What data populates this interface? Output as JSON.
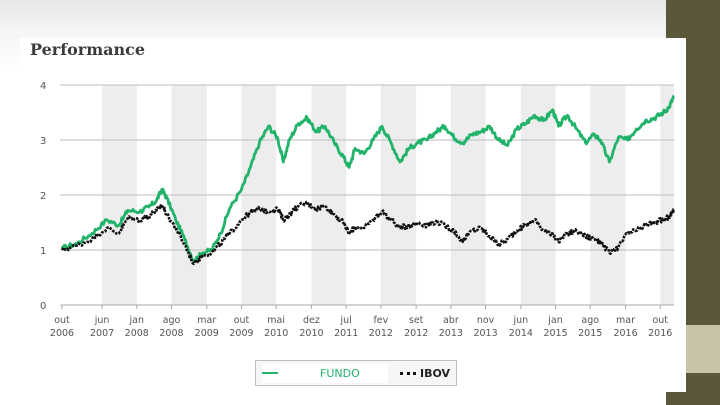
{
  "title": "Performance",
  "colors": {
    "fundo": "#22b36a",
    "ibov": "#111111",
    "band": "#ededed",
    "grid": "#bdbdbd",
    "deco_dark": "#5b573a",
    "deco_light": "#c7c4a8"
  },
  "legend": {
    "fundo_label": "FUNDO",
    "ibov_label": "IBOV"
  },
  "chart_data": {
    "type": "line",
    "title": "Performance",
    "ylim": [
      0,
      4
    ],
    "yticks": [
      "0",
      "1",
      "2",
      "3",
      "4"
    ],
    "xlim": [
      2006.75,
      2016.98
    ],
    "xticks": [
      {
        "x": 2006.75,
        "m": "out",
        "y": "2006"
      },
      {
        "x": 2007.42,
        "m": "jun",
        "y": "2007"
      },
      {
        "x": 2008.0,
        "m": "jan",
        "y": "2008"
      },
      {
        "x": 2008.58,
        "m": "ago",
        "y": "2008"
      },
      {
        "x": 2009.17,
        "m": "mar",
        "y": "2009"
      },
      {
        "x": 2009.75,
        "m": "out",
        "y": "2009"
      },
      {
        "x": 2010.33,
        "m": "mai",
        "y": "2010"
      },
      {
        "x": 2010.92,
        "m": "dez",
        "y": "2010"
      },
      {
        "x": 2011.5,
        "m": "jul",
        "y": "2011"
      },
      {
        "x": 2012.08,
        "m": "fev",
        "y": "2012"
      },
      {
        "x": 2012.67,
        "m": "set",
        "y": "2012"
      },
      {
        "x": 2013.25,
        "m": "abr",
        "y": "2013"
      },
      {
        "x": 2013.83,
        "m": "nov",
        "y": "2013"
      },
      {
        "x": 2014.42,
        "m": "jun",
        "y": "2014"
      },
      {
        "x": 2015.0,
        "m": "jan",
        "y": "2015"
      },
      {
        "x": 2015.58,
        "m": "ago",
        "y": "2015"
      },
      {
        "x": 2016.17,
        "m": "mar",
        "y": "2016"
      },
      {
        "x": 2016.75,
        "m": "out",
        "y": "2016"
      }
    ],
    "grid": true,
    "legend_position": "bottom",
    "series": [
      {
        "name": "FUNDO",
        "style": "solid",
        "points": [
          [
            2006.75,
            1.03
          ],
          [
            2007.0,
            1.12
          ],
          [
            2007.25,
            1.3
          ],
          [
            2007.5,
            1.55
          ],
          [
            2007.7,
            1.45
          ],
          [
            2007.85,
            1.72
          ],
          [
            2008.05,
            1.7
          ],
          [
            2008.2,
            1.78
          ],
          [
            2008.33,
            1.9
          ],
          [
            2008.42,
            2.1
          ],
          [
            2008.5,
            1.95
          ],
          [
            2008.65,
            1.55
          ],
          [
            2008.8,
            1.2
          ],
          [
            2008.95,
            0.8
          ],
          [
            2009.1,
            0.95
          ],
          [
            2009.25,
            1.0
          ],
          [
            2009.4,
            1.3
          ],
          [
            2009.55,
            1.75
          ],
          [
            2009.75,
            2.1
          ],
          [
            2009.9,
            2.5
          ],
          [
            2010.05,
            2.95
          ],
          [
            2010.2,
            3.25
          ],
          [
            2010.35,
            3.05
          ],
          [
            2010.45,
            2.6
          ],
          [
            2010.55,
            3.0
          ],
          [
            2010.7,
            3.3
          ],
          [
            2010.85,
            3.4
          ],
          [
            2011.0,
            3.15
          ],
          [
            2011.15,
            3.25
          ],
          [
            2011.3,
            2.95
          ],
          [
            2011.45,
            2.7
          ],
          [
            2011.55,
            2.5
          ],
          [
            2011.65,
            2.85
          ],
          [
            2011.8,
            2.75
          ],
          [
            2011.95,
            3.0
          ],
          [
            2012.1,
            3.25
          ],
          [
            2012.25,
            2.95
          ],
          [
            2012.4,
            2.6
          ],
          [
            2012.55,
            2.85
          ],
          [
            2012.7,
            2.95
          ],
          [
            2012.85,
            3.0
          ],
          [
            2013.0,
            3.15
          ],
          [
            2013.15,
            3.25
          ],
          [
            2013.3,
            3.05
          ],
          [
            2013.45,
            2.95
          ],
          [
            2013.6,
            3.1
          ],
          [
            2013.75,
            3.15
          ],
          [
            2013.9,
            3.25
          ],
          [
            2014.05,
            3.0
          ],
          [
            2014.2,
            2.9
          ],
          [
            2014.35,
            3.2
          ],
          [
            2014.5,
            3.3
          ],
          [
            2014.65,
            3.45
          ],
          [
            2014.8,
            3.35
          ],
          [
            2014.95,
            3.55
          ],
          [
            2015.05,
            3.25
          ],
          [
            2015.2,
            3.45
          ],
          [
            2015.35,
            3.2
          ],
          [
            2015.5,
            2.95
          ],
          [
            2015.65,
            3.1
          ],
          [
            2015.75,
            3.0
          ],
          [
            2015.9,
            2.6
          ],
          [
            2016.05,
            3.05
          ],
          [
            2016.2,
            3.0
          ],
          [
            2016.35,
            3.2
          ],
          [
            2016.5,
            3.35
          ],
          [
            2016.65,
            3.4
          ],
          [
            2016.8,
            3.5
          ],
          [
            2016.9,
            3.6
          ],
          [
            2016.98,
            3.8
          ]
        ]
      },
      {
        "name": "IBOV",
        "style": "dotted",
        "points": [
          [
            2006.75,
            1.0
          ],
          [
            2007.0,
            1.08
          ],
          [
            2007.25,
            1.2
          ],
          [
            2007.5,
            1.4
          ],
          [
            2007.7,
            1.3
          ],
          [
            2007.85,
            1.58
          ],
          [
            2008.05,
            1.55
          ],
          [
            2008.2,
            1.62
          ],
          [
            2008.33,
            1.72
          ],
          [
            2008.42,
            1.82
          ],
          [
            2008.5,
            1.65
          ],
          [
            2008.65,
            1.4
          ],
          [
            2008.8,
            1.1
          ],
          [
            2008.95,
            0.75
          ],
          [
            2009.1,
            0.9
          ],
          [
            2009.25,
            0.95
          ],
          [
            2009.4,
            1.12
          ],
          [
            2009.55,
            1.3
          ],
          [
            2009.75,
            1.55
          ],
          [
            2009.9,
            1.68
          ],
          [
            2010.05,
            1.75
          ],
          [
            2010.2,
            1.7
          ],
          [
            2010.35,
            1.75
          ],
          [
            2010.45,
            1.55
          ],
          [
            2010.55,
            1.65
          ],
          [
            2010.7,
            1.8
          ],
          [
            2010.85,
            1.85
          ],
          [
            2011.0,
            1.75
          ],
          [
            2011.15,
            1.8
          ],
          [
            2011.3,
            1.65
          ],
          [
            2011.45,
            1.5
          ],
          [
            2011.55,
            1.3
          ],
          [
            2011.65,
            1.42
          ],
          [
            2011.8,
            1.4
          ],
          [
            2011.95,
            1.55
          ],
          [
            2012.1,
            1.7
          ],
          [
            2012.25,
            1.55
          ],
          [
            2012.4,
            1.4
          ],
          [
            2012.55,
            1.45
          ],
          [
            2012.7,
            1.5
          ],
          [
            2012.85,
            1.45
          ],
          [
            2013.0,
            1.52
          ],
          [
            2013.15,
            1.45
          ],
          [
            2013.3,
            1.35
          ],
          [
            2013.45,
            1.15
          ],
          [
            2013.6,
            1.35
          ],
          [
            2013.75,
            1.4
          ],
          [
            2013.9,
            1.25
          ],
          [
            2014.05,
            1.1
          ],
          [
            2014.2,
            1.2
          ],
          [
            2014.35,
            1.35
          ],
          [
            2014.5,
            1.45
          ],
          [
            2014.65,
            1.55
          ],
          [
            2014.8,
            1.35
          ],
          [
            2014.95,
            1.3
          ],
          [
            2015.05,
            1.15
          ],
          [
            2015.2,
            1.3
          ],
          [
            2015.35,
            1.35
          ],
          [
            2015.5,
            1.25
          ],
          [
            2015.65,
            1.2
          ],
          [
            2015.75,
            1.15
          ],
          [
            2015.9,
            0.95
          ],
          [
            2016.05,
            1.05
          ],
          [
            2016.2,
            1.3
          ],
          [
            2016.35,
            1.35
          ],
          [
            2016.5,
            1.45
          ],
          [
            2016.65,
            1.5
          ],
          [
            2016.8,
            1.55
          ],
          [
            2016.9,
            1.6
          ],
          [
            2016.98,
            1.72
          ]
        ]
      }
    ]
  }
}
